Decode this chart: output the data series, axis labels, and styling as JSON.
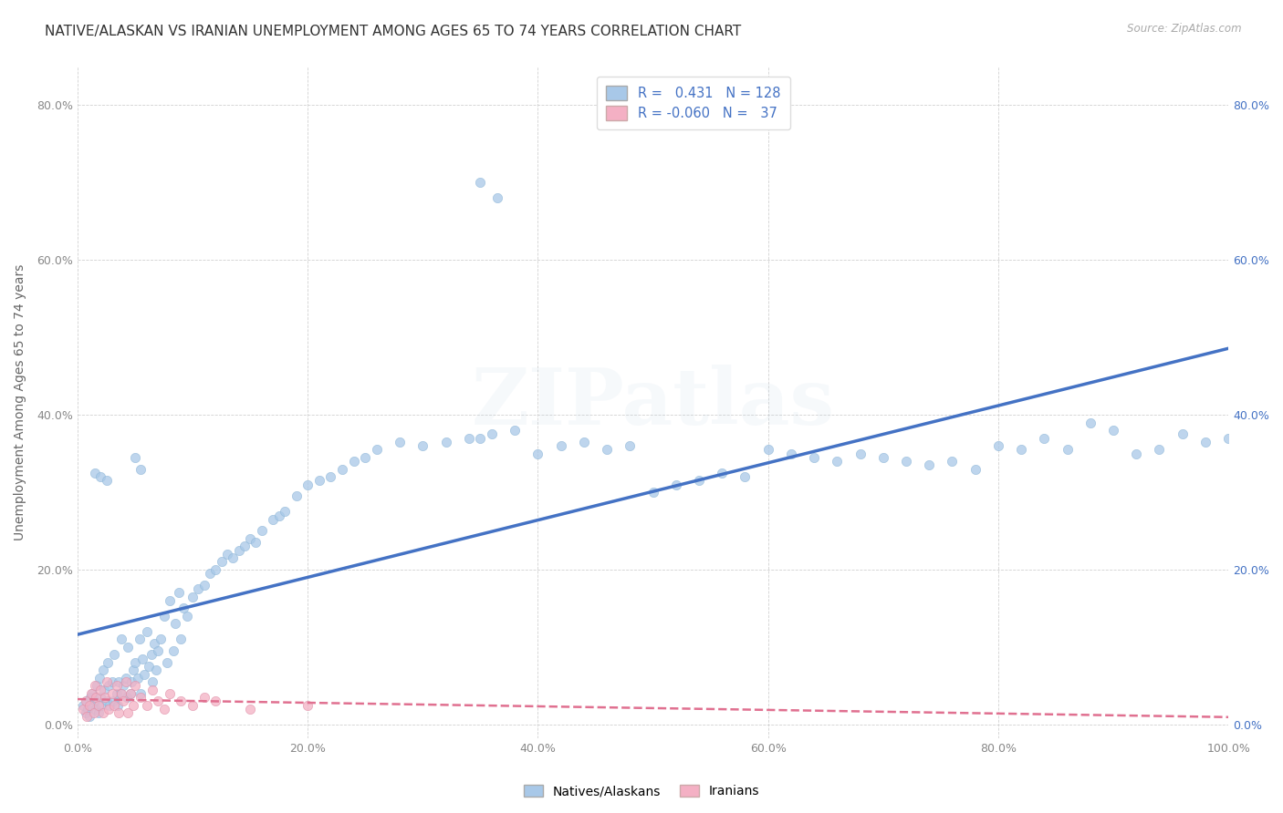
{
  "title": "NATIVE/ALASKAN VS IRANIAN UNEMPLOYMENT AMONG AGES 65 TO 74 YEARS CORRELATION CHART",
  "source": "Source: ZipAtlas.com",
  "ylabel": "Unemployment Among Ages 65 to 74 years",
  "xlim": [
    0.0,
    1.0
  ],
  "ylim": [
    -0.018,
    0.85
  ],
  "xtick_vals": [
    0.0,
    0.2,
    0.4,
    0.6,
    0.8,
    1.0
  ],
  "xtick_labels": [
    "0.0%",
    "20.0%",
    "40.0%",
    "60.0%",
    "80.0%",
    "100.0%"
  ],
  "ytick_vals": [
    0.0,
    0.2,
    0.4,
    0.6,
    0.8
  ],
  "ytick_labels": [
    "0.0%",
    "20.0%",
    "40.0%",
    "60.0%",
    "80.0%"
  ],
  "native_color": "#a8c8e8",
  "iranian_color": "#f4b0c4",
  "native_line_color": "#4472c4",
  "iranian_line_color": "#e07090",
  "native_R": 0.431,
  "native_N": 128,
  "iranian_R": -0.06,
  "iranian_N": 37,
  "legend_label_native": "Natives/Alaskans",
  "legend_label_iranian": "Iranians",
  "background_color": "#ffffff",
  "grid_color": "#cccccc",
  "title_fontsize": 11,
  "axis_label_fontsize": 10,
  "tick_fontsize": 9,
  "legend_fontsize": 10.5,
  "watermark_text": "ZIPatlas",
  "watermark_alpha": 0.1,
  "native_scatter_x": [
    0.005,
    0.007,
    0.008,
    0.009,
    0.01,
    0.011,
    0.012,
    0.013,
    0.015,
    0.016,
    0.017,
    0.018,
    0.019,
    0.02,
    0.021,
    0.022,
    0.023,
    0.025,
    0.026,
    0.027,
    0.028,
    0.03,
    0.031,
    0.032,
    0.034,
    0.035,
    0.036,
    0.037,
    0.038,
    0.04,
    0.042,
    0.043,
    0.044,
    0.046,
    0.047,
    0.048,
    0.05,
    0.052,
    0.054,
    0.055,
    0.056,
    0.058,
    0.06,
    0.062,
    0.064,
    0.065,
    0.067,
    0.068,
    0.07,
    0.072,
    0.075,
    0.078,
    0.08,
    0.083,
    0.085,
    0.088,
    0.09,
    0.092,
    0.095,
    0.1,
    0.105,
    0.11,
    0.115,
    0.12,
    0.125,
    0.13,
    0.135,
    0.14,
    0.145,
    0.15,
    0.155,
    0.16,
    0.17,
    0.175,
    0.18,
    0.19,
    0.2,
    0.21,
    0.22,
    0.23,
    0.24,
    0.25,
    0.26,
    0.28,
    0.3,
    0.32,
    0.34,
    0.35,
    0.36,
    0.38,
    0.4,
    0.42,
    0.44,
    0.46,
    0.48,
    0.5,
    0.52,
    0.54,
    0.56,
    0.58,
    0.6,
    0.62,
    0.64,
    0.66,
    0.68,
    0.7,
    0.72,
    0.74,
    0.76,
    0.78,
    0.8,
    0.82,
    0.84,
    0.86,
    0.88,
    0.9,
    0.92,
    0.94,
    0.96,
    0.98,
    1.0,
    0.35,
    0.365,
    0.05,
    0.055,
    0.015,
    0.02,
    0.025
  ],
  "native_scatter_y": [
    0.025,
    0.015,
    0.03,
    0.02,
    0.01,
    0.035,
    0.025,
    0.04,
    0.03,
    0.02,
    0.05,
    0.015,
    0.06,
    0.035,
    0.025,
    0.07,
    0.045,
    0.03,
    0.08,
    0.05,
    0.025,
    0.055,
    0.03,
    0.09,
    0.04,
    0.025,
    0.055,
    0.04,
    0.11,
    0.05,
    0.06,
    0.035,
    0.1,
    0.04,
    0.055,
    0.07,
    0.08,
    0.06,
    0.11,
    0.04,
    0.085,
    0.065,
    0.12,
    0.075,
    0.09,
    0.055,
    0.105,
    0.07,
    0.095,
    0.11,
    0.14,
    0.08,
    0.16,
    0.095,
    0.13,
    0.17,
    0.11,
    0.15,
    0.14,
    0.165,
    0.175,
    0.18,
    0.195,
    0.2,
    0.21,
    0.22,
    0.215,
    0.225,
    0.23,
    0.24,
    0.235,
    0.25,
    0.265,
    0.27,
    0.275,
    0.295,
    0.31,
    0.315,
    0.32,
    0.33,
    0.34,
    0.345,
    0.355,
    0.365,
    0.36,
    0.365,
    0.37,
    0.37,
    0.375,
    0.38,
    0.35,
    0.36,
    0.365,
    0.355,
    0.36,
    0.3,
    0.31,
    0.315,
    0.325,
    0.32,
    0.355,
    0.35,
    0.345,
    0.34,
    0.35,
    0.345,
    0.34,
    0.335,
    0.34,
    0.33,
    0.36,
    0.355,
    0.37,
    0.355,
    0.39,
    0.38,
    0.35,
    0.355,
    0.375,
    0.365,
    0.37,
    0.7,
    0.68,
    0.345,
    0.33,
    0.325,
    0.32,
    0.315
  ],
  "iranian_scatter_x": [
    0.005,
    0.007,
    0.008,
    0.01,
    0.012,
    0.014,
    0.015,
    0.016,
    0.018,
    0.02,
    0.022,
    0.024,
    0.025,
    0.027,
    0.03,
    0.032,
    0.034,
    0.036,
    0.038,
    0.04,
    0.042,
    0.044,
    0.046,
    0.048,
    0.05,
    0.055,
    0.06,
    0.065,
    0.07,
    0.075,
    0.08,
    0.09,
    0.1,
    0.11,
    0.12,
    0.15,
    0.2
  ],
  "iranian_scatter_y": [
    0.02,
    0.03,
    0.01,
    0.025,
    0.04,
    0.015,
    0.05,
    0.035,
    0.025,
    0.045,
    0.015,
    0.035,
    0.055,
    0.02,
    0.04,
    0.025,
    0.05,
    0.015,
    0.04,
    0.03,
    0.055,
    0.015,
    0.04,
    0.025,
    0.05,
    0.035,
    0.025,
    0.045,
    0.03,
    0.02,
    0.04,
    0.03,
    0.025,
    0.035,
    0.03,
    0.02,
    0.025
  ]
}
